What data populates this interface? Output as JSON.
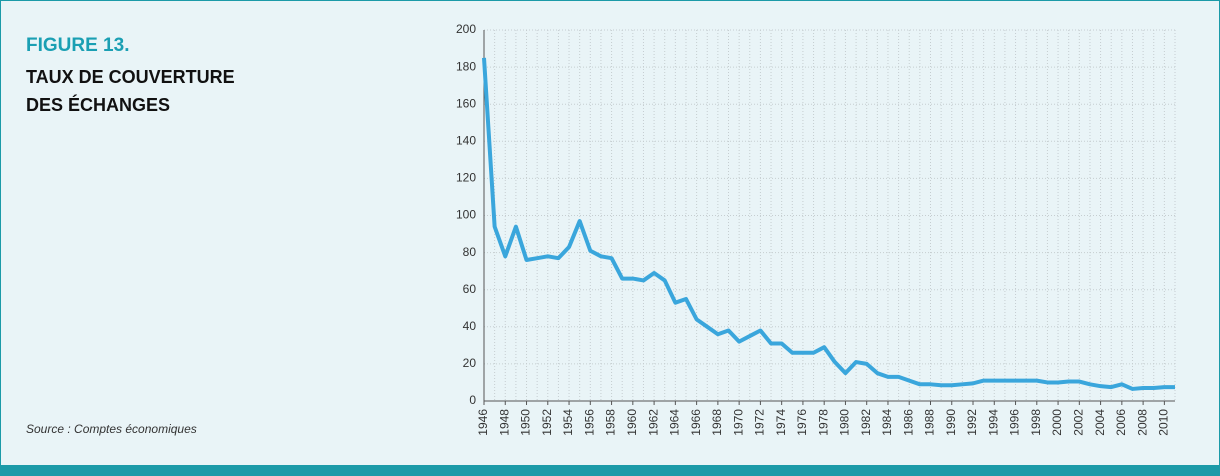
{
  "chart_data": {
    "type": "line",
    "figure_label": "FIGURE 13.",
    "title": "TAUX DE COUVERTURE DES ÉCHANGES",
    "title_lines": [
      "TAUX DE COUVERTURE",
      "DES ÉCHANGES"
    ],
    "source": "Source : Comptes économiques",
    "x": [
      1946,
      1947,
      1948,
      1949,
      1950,
      1951,
      1952,
      1953,
      1954,
      1955,
      1956,
      1957,
      1958,
      1959,
      1960,
      1961,
      1962,
      1963,
      1964,
      1965,
      1966,
      1967,
      1968,
      1969,
      1970,
      1971,
      1972,
      1973,
      1974,
      1975,
      1976,
      1977,
      1978,
      1979,
      1980,
      1981,
      1982,
      1983,
      1984,
      1985,
      1986,
      1987,
      1988,
      1989,
      1990,
      1991,
      1992,
      1993,
      1994,
      1995,
      1996,
      1997,
      1998,
      1999,
      2000,
      2001,
      2002,
      2003,
      2004,
      2005,
      2006,
      2007,
      2008,
      2009,
      2010,
      2011
    ],
    "series": [
      {
        "name": "Taux de couverture",
        "color": "#3aa6dc",
        "values": [
          185,
          94,
          78,
          94,
          76,
          77,
          78,
          77,
          83,
          97,
          81,
          78,
          77,
          66,
          66,
          65,
          69,
          65,
          53,
          55,
          44,
          40,
          36,
          38,
          32,
          35,
          38,
          31,
          31,
          26,
          26,
          26,
          29,
          21,
          15,
          21,
          20,
          15,
          13,
          13,
          11,
          9,
          9,
          8.5,
          8.5,
          9,
          9.5,
          11,
          11,
          11,
          11,
          11,
          11,
          10,
          10,
          10.5,
          10.5,
          9,
          8,
          7.5,
          9,
          6.5,
          7,
          7,
          7.5,
          7.5
        ]
      }
    ],
    "xlim": [
      1946,
      2011
    ],
    "xticks": [
      1946,
      1948,
      1950,
      1952,
      1954,
      1956,
      1958,
      1960,
      1962,
      1964,
      1966,
      1968,
      1970,
      1972,
      1974,
      1976,
      1978,
      1980,
      1982,
      1984,
      1986,
      1988,
      1990,
      1992,
      1994,
      1996,
      1998,
      2000,
      2002,
      2004,
      2006,
      2008,
      2010
    ],
    "ylim": [
      0,
      200
    ],
    "yticks": [
      0,
      20,
      40,
      60,
      80,
      100,
      120,
      140,
      160,
      180,
      200
    ],
    "grid": true
  }
}
